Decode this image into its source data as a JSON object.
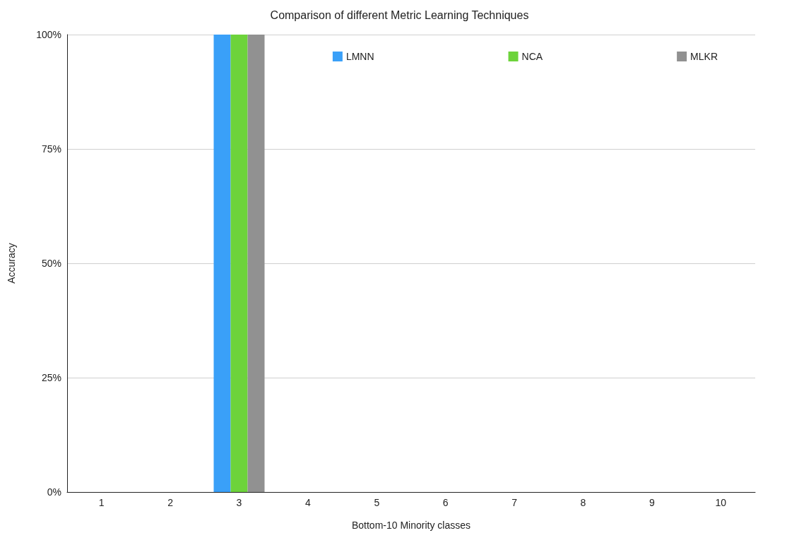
{
  "chart_data": {
    "type": "bar",
    "title": "Comparison of different Metric Learning Techniques",
    "xlabel": "Bottom-10 Minority classes",
    "ylabel": "Accuracy",
    "categories": [
      "1",
      "2",
      "3",
      "4",
      "5",
      "6",
      "7",
      "8",
      "9",
      "10"
    ],
    "series": [
      {
        "name": "LMNN",
        "color": "#3aa0f8",
        "values": [
          0,
          0,
          100,
          0,
          0,
          0,
          0,
          0,
          0,
          0
        ]
      },
      {
        "name": "NCA",
        "color": "#6dd33b",
        "values": [
          0,
          0,
          100,
          0,
          0,
          0,
          0,
          0,
          0,
          0
        ]
      },
      {
        "name": "MLKR",
        "color": "#919191",
        "values": [
          0,
          0,
          100,
          0,
          0,
          0,
          0,
          0,
          0,
          0
        ]
      }
    ],
    "ylim": [
      0,
      100
    ],
    "yticks": [
      {
        "value": 0,
        "label": "0%"
      },
      {
        "value": 25,
        "label": "25%"
      },
      {
        "value": 50,
        "label": "50%"
      },
      {
        "value": 75,
        "label": "75%"
      },
      {
        "value": 100,
        "label": "100%"
      }
    ],
    "grid": "y",
    "legend": "top right"
  }
}
